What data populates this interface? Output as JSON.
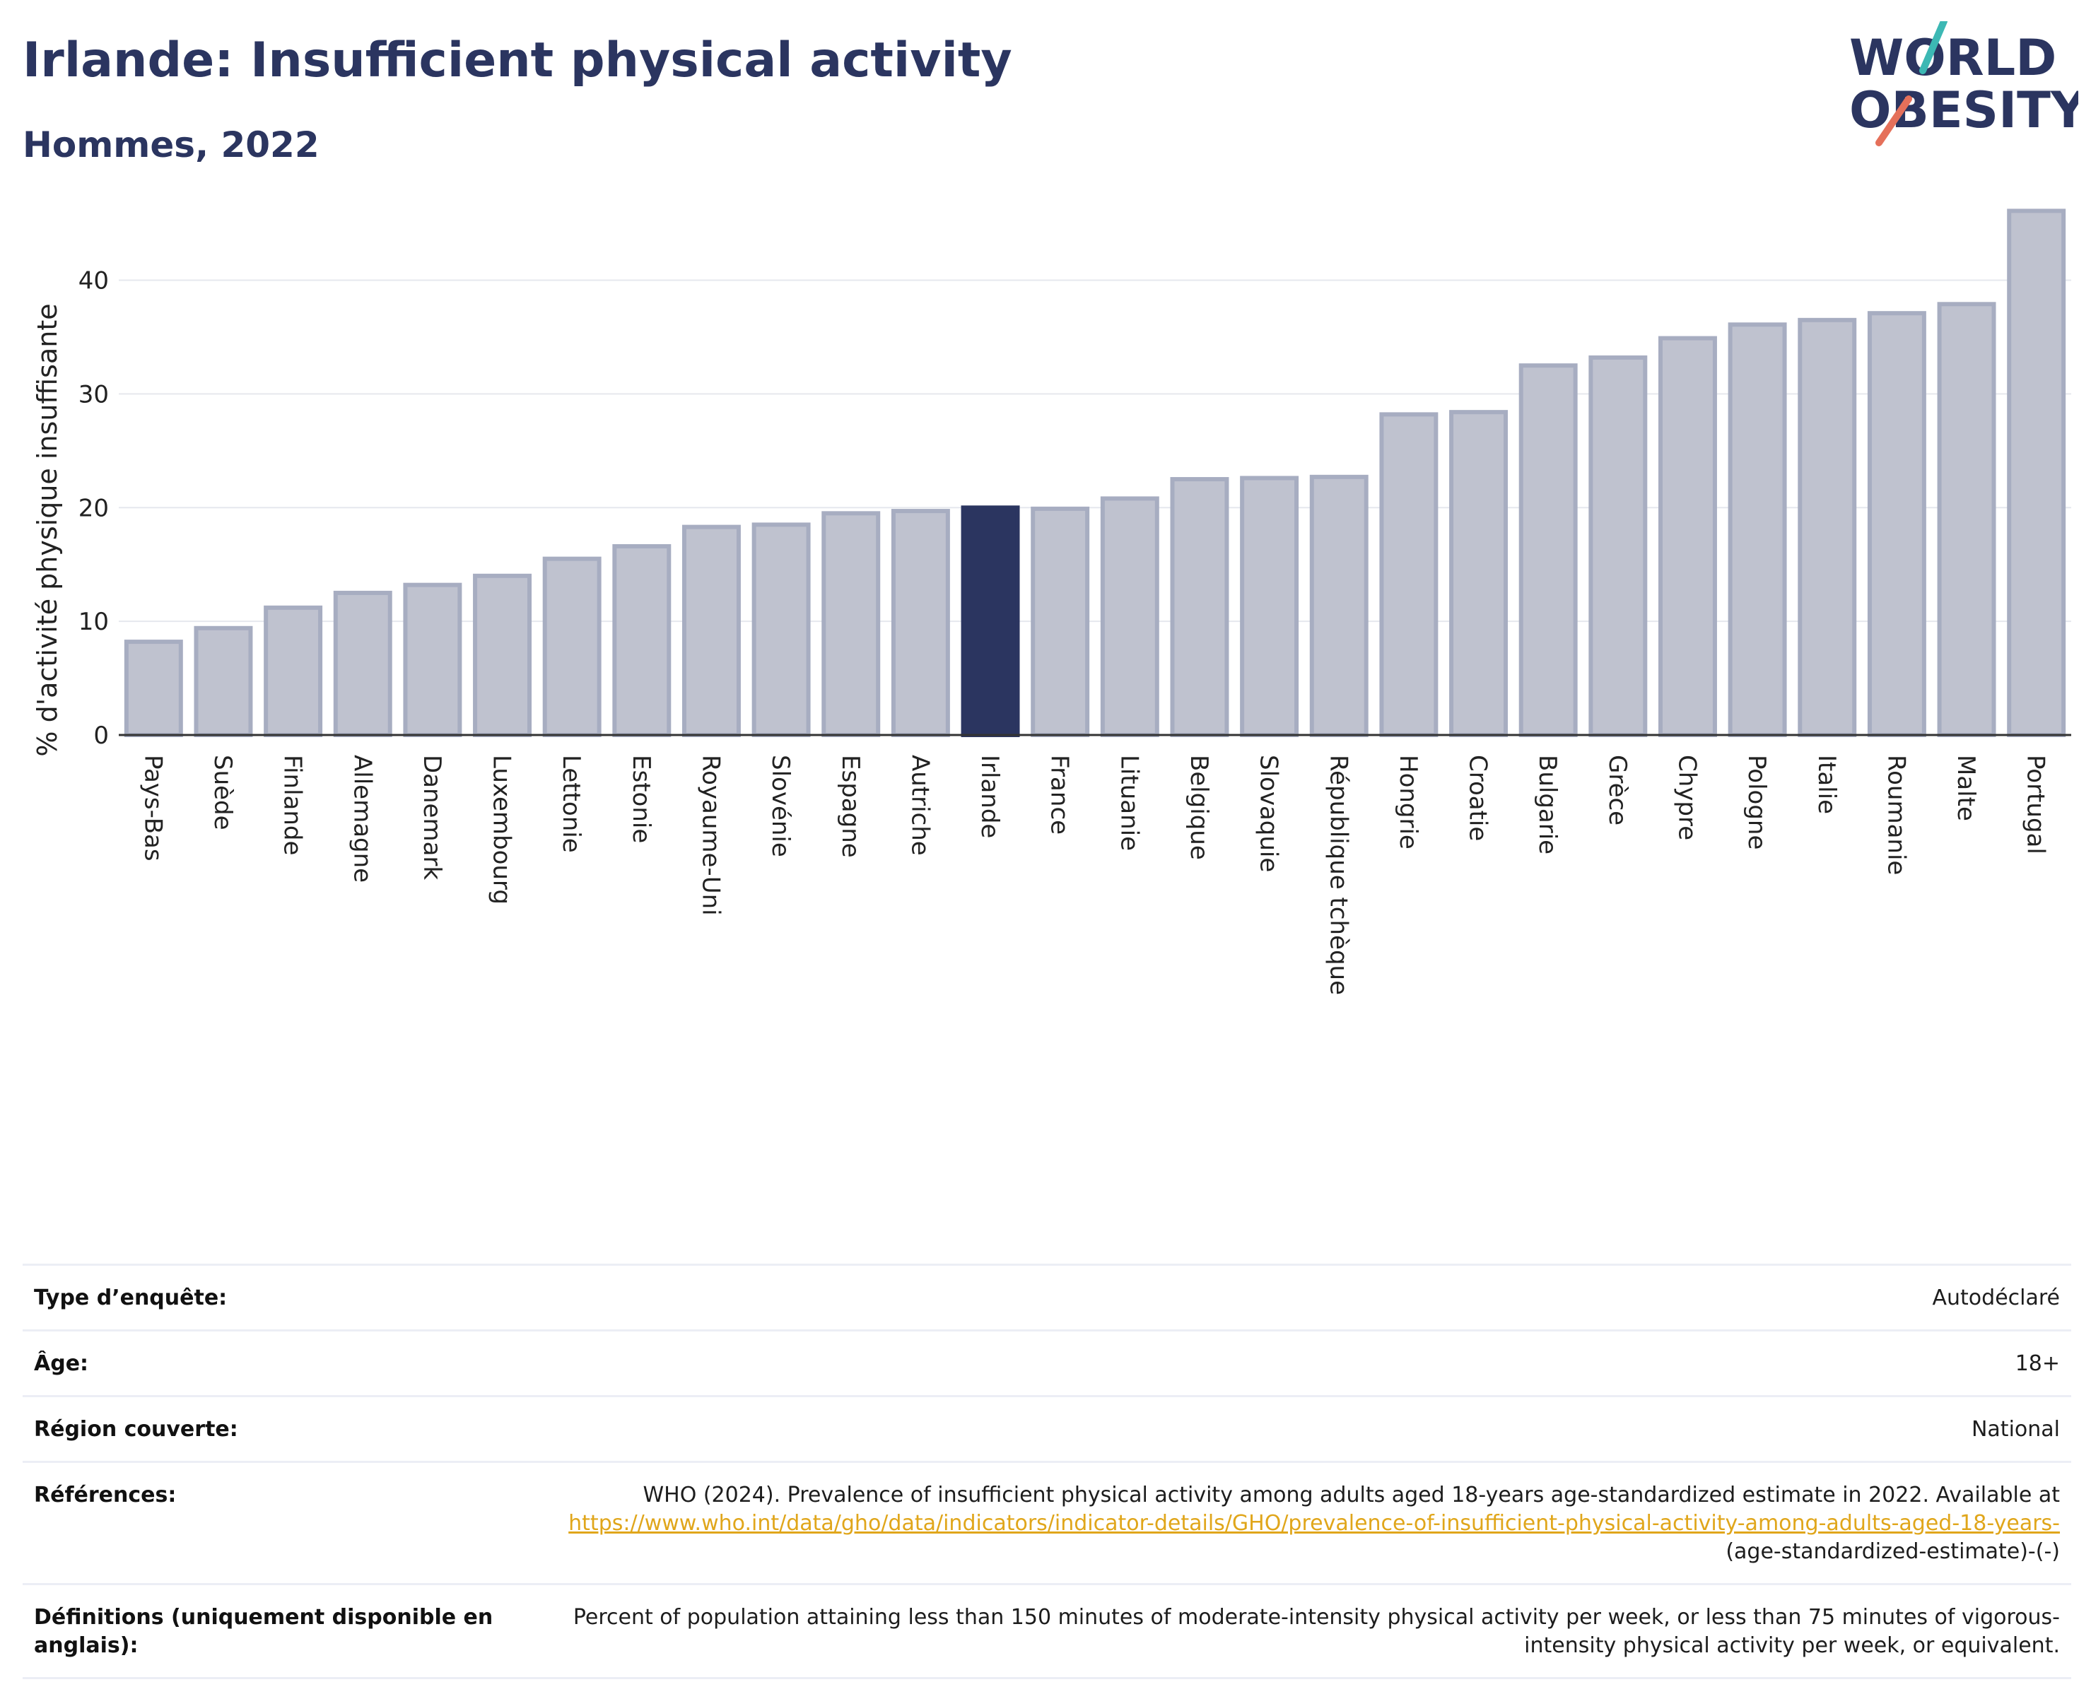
{
  "header": {
    "title": "Irlande: Insufficient physical activity",
    "subtitle": "Hommes, 2022"
  },
  "logo": {
    "line1": "WORLD",
    "line2": "OBESITY",
    "text_color": "#2b3560",
    "slash_colors": [
      "#3cb8b4",
      "#e5705a"
    ]
  },
  "colors": {
    "bar_fill": "#bfc2cf",
    "bar_stroke": "#a7adc1",
    "highlight": "#2b3560",
    "grid": "#e6e8ee",
    "axis": "#333333"
  },
  "chart_data": {
    "type": "bar",
    "ylabel": "% d'activité physique insuffisante",
    "ylim": [
      0,
      46
    ],
    "yticks": [
      0,
      10,
      20,
      30,
      40
    ],
    "grid": true,
    "highlight": "Irlande",
    "categories": [
      "Pays-Bas",
      "Suède",
      "Finlande",
      "Allemagne",
      "Danemark",
      "Luxembourg",
      "Lettonie",
      "Estonie",
      "Royaume-Uni",
      "Slovénie",
      "Espagne",
      "Autriche",
      "Irlande",
      "France",
      "Lituanie",
      "Belgique",
      "Slovaquie",
      "République tchèque",
      "Hongrie",
      "Croatie",
      "Bulgarie",
      "Grèce",
      "Chypre",
      "Pologne",
      "Italie",
      "Roumanie",
      "Malte",
      "Portugal"
    ],
    "values": [
      8.2,
      9.4,
      11.2,
      12.5,
      13.2,
      14.0,
      15.5,
      16.6,
      18.3,
      18.5,
      19.5,
      19.7,
      20.0,
      19.9,
      20.8,
      22.5,
      22.6,
      22.7,
      28.2,
      28.4,
      32.5,
      33.2,
      34.9,
      36.1,
      36.5,
      37.1,
      37.9,
      46.1
    ]
  },
  "meta": [
    {
      "label": "Type d’enquête:",
      "value": "Autodéclaré"
    },
    {
      "label": "Âge:",
      "value": "18+"
    },
    {
      "label": "Région couverte:",
      "value": "National"
    },
    {
      "label": "Références:",
      "value_prefix": "WHO (2024). Prevalence of insufficient physical activity among adults aged 18-years age-standardized estimate in 2022. Available at",
      "link": "https://www.who.int/data/gho/data/indicators/indicator-details/GHO/prevalence-of-insufficient-physical-activity-among-adults-aged-18-years-",
      "value_suffix": "(age-standardized-estimate)-(-)"
    },
    {
      "label": "Définitions (uniquement disponible en anglais):",
      "value": "Percent of population attaining less than 150 minutes of moderate-intensity physical activity per week, or less than 75 minutes of vigorous-intensity physical activity per week, or equivalent."
    }
  ]
}
